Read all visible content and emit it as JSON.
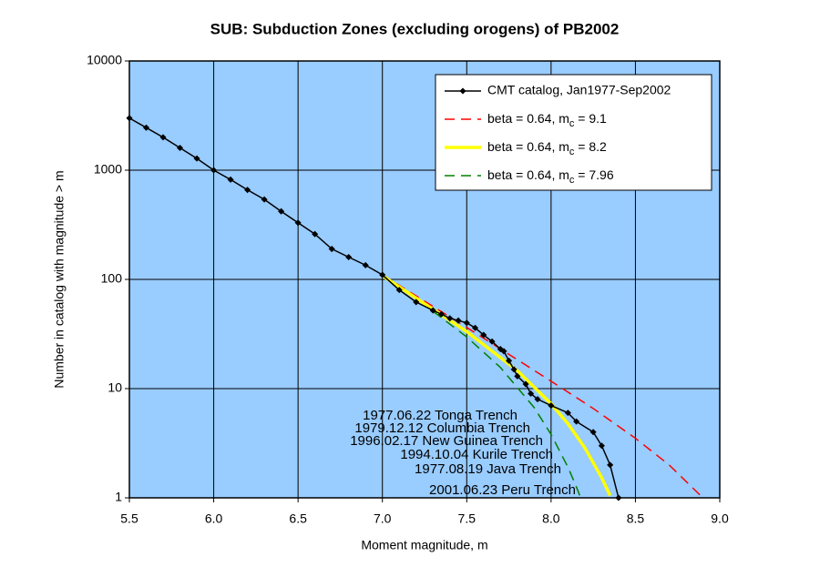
{
  "chart_data": {
    "type": "line",
    "title": "SUB: Subduction Zones (excluding orogens) of PB2002",
    "x_label": "Moment magnitude, m",
    "y_label": "Number in catalog with magnitude > m",
    "xlim": [
      5.5,
      9.0
    ],
    "xticks": [
      5.5,
      {
        "value": 6,
        "label": "6.0"
      },
      6.5,
      {
        "value": 7,
        "label": "7.0"
      },
      7.5,
      {
        "value": 8,
        "label": "8.0"
      },
      8.5,
      {
        "value": 9,
        "label": "9.0"
      }
    ],
    "ylim": [
      1,
      10000
    ],
    "yticks": [
      1,
      10,
      100,
      1000,
      10000
    ],
    "log_y": true,
    "grid": true,
    "legend": "upper right",
    "series": [
      {
        "name": "CMT catalog, Jan1977-Sep2002",
        "color": "#000000",
        "style": "line-markers",
        "x": [
          5.5,
          5.6,
          5.7,
          5.8,
          5.9,
          6.0,
          6.1,
          6.2,
          6.3,
          6.4,
          6.5,
          6.6,
          6.7,
          6.8,
          6.9,
          7.0,
          7.1,
          7.2,
          7.3,
          7.35,
          7.4,
          7.45,
          7.5,
          7.55,
          7.6,
          7.65,
          7.7,
          7.72,
          7.75,
          7.78,
          7.8,
          7.85,
          7.88,
          7.92,
          8.0,
          8.1,
          8.15,
          8.25,
          8.3,
          8.35,
          8.4
        ],
        "values": [
          3000,
          2450,
          2000,
          1600,
          1280,
          1000,
          820,
          660,
          540,
          420,
          330,
          260,
          190,
          160,
          135,
          110,
          80,
          62,
          52,
          48,
          44,
          42,
          40,
          36,
          31,
          27,
          23,
          22,
          18,
          15,
          13,
          11,
          9,
          8,
          7,
          6,
          5,
          4,
          3,
          2,
          1
        ]
      },
      {
        "name": "beta = 0.64, mc = 9.1",
        "color": "#ff0000",
        "style": "dashed",
        "x": [
          7.0,
          7.5,
          8.0,
          8.25,
          8.5,
          8.7,
          8.9
        ],
        "values": [
          110,
          36.3,
          11.7,
          6.58,
          3.51,
          2.0,
          1.0
        ]
      },
      {
        "name": "beta = 0.64, mc = 8.2",
        "color": "#ffff00",
        "style": "thick",
        "x": [
          7.0,
          7.5,
          7.8,
          8.0,
          8.1,
          8.2,
          8.3,
          8.35
        ],
        "values": [
          108,
          33.3,
          14.6,
          7.27,
          4.77,
          2.87,
          1.53,
          1.05
        ]
      },
      {
        "name": "beta = 0.64, mc = 7.96",
        "color": "#008000",
        "style": "dashed",
        "x": [
          7.3,
          7.5,
          7.7,
          7.9,
          8.0,
          8.1,
          8.15,
          8.17
        ],
        "values": [
          51.1,
          29.7,
          15.6,
          6.7,
          3.81,
          1.91,
          1.26,
          1.05
        ]
      }
    ],
    "annotations": [
      "1977.06.22 Tonga Trench",
      "1979.12.12 Columbia Trench",
      "1996.02.17 New Guinea Trench",
      "1994.10.04 Kurile Trench",
      "1977.08.19 Java Trench",
      "2001.06.23 Peru Trench"
    ]
  }
}
